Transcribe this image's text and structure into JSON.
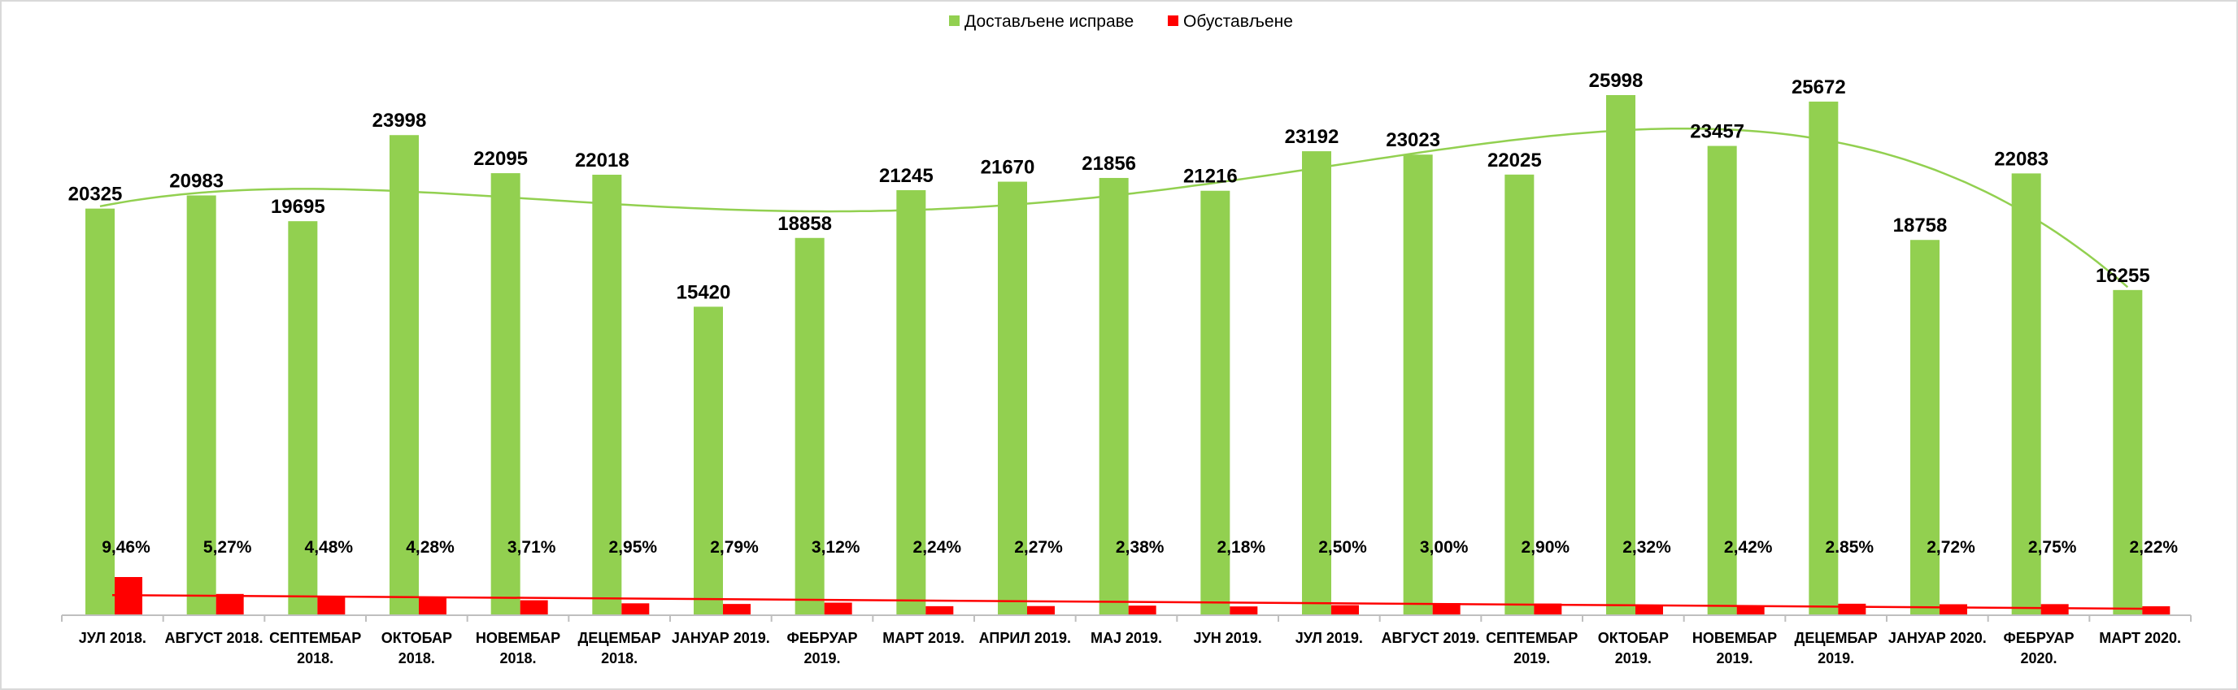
{
  "chart_data": {
    "type": "bar",
    "legend_position": "top-center",
    "grid": false,
    "categories": [
      [
        "ЈУЛ 2018."
      ],
      [
        "АВГУСТ 2018."
      ],
      [
        "СЕПТЕМБАР",
        "2018."
      ],
      [
        "ОКТОБАР",
        "2018."
      ],
      [
        "НОВЕМБАР",
        "2018."
      ],
      [
        "ДЕЦЕМБАР",
        "2018."
      ],
      [
        "ЈАНУАР 2019."
      ],
      [
        "ФЕБРУАР",
        "2019."
      ],
      [
        "МАРТ 2019."
      ],
      [
        "АПРИЛ 2019."
      ],
      [
        "МАЈ 2019."
      ],
      [
        "ЈУН 2019."
      ],
      [
        "ЈУЛ 2019."
      ],
      [
        "АВГУСТ 2019."
      ],
      [
        "СЕПТЕМБАР",
        "2019."
      ],
      [
        "ОКТОБАР",
        "2019."
      ],
      [
        "НОВЕМБАР",
        "2019."
      ],
      [
        "ДЕЦЕМБАР",
        "2019."
      ],
      [
        "ЈАНУАР 2020."
      ],
      [
        "ФЕБРУАР",
        "2020."
      ],
      [
        "МАРТ 2020."
      ]
    ],
    "series": [
      {
        "name": "Достављене исправе",
        "color": "#92d050",
        "values": [
          20325,
          20983,
          19695,
          23998,
          22095,
          22018,
          15420,
          18858,
          21245,
          21670,
          21856,
          21216,
          23192,
          23023,
          22025,
          25998,
          23457,
          25672,
          18758,
          22083,
          16255
        ],
        "labels": [
          "20325",
          "20983",
          "19695",
          "23998",
          "22095",
          "22018",
          "15420",
          "18858",
          "21245",
          "21670",
          "21856",
          "21216",
          "23192",
          "23023",
          "22025",
          "25998",
          "23457",
          "25672",
          "18758",
          "22083",
          "16255"
        ]
      },
      {
        "name": "Обустављене",
        "color": "#ff0000",
        "values": [
          9.46,
          5.27,
          4.48,
          4.28,
          3.71,
          2.95,
          2.79,
          3.12,
          2.24,
          2.27,
          2.38,
          2.18,
          2.5,
          3.0,
          2.9,
          2.32,
          2.42,
          2.85,
          2.72,
          2.75,
          2.22
        ],
        "labels": [
          "9,46%",
          "5,27%",
          "4,48%",
          "4,28%",
          "3,71%",
          "2,95%",
          "2,79%",
          "3,12%",
          "2,24%",
          "2,27%",
          "2,38%",
          "2,18%",
          "2,50%",
          "3,00%",
          "2,90%",
          "2,32%",
          "2,42%",
          "2.85%",
          "2,72%",
          "2,75%",
          "2,22%"
        ]
      }
    ],
    "trendlines": [
      {
        "series": "Достављене исправе",
        "color": "#92d050",
        "kind": "polynomial"
      },
      {
        "series": "Обустављене",
        "color": "#ff0000",
        "kind": "linear"
      }
    ]
  }
}
